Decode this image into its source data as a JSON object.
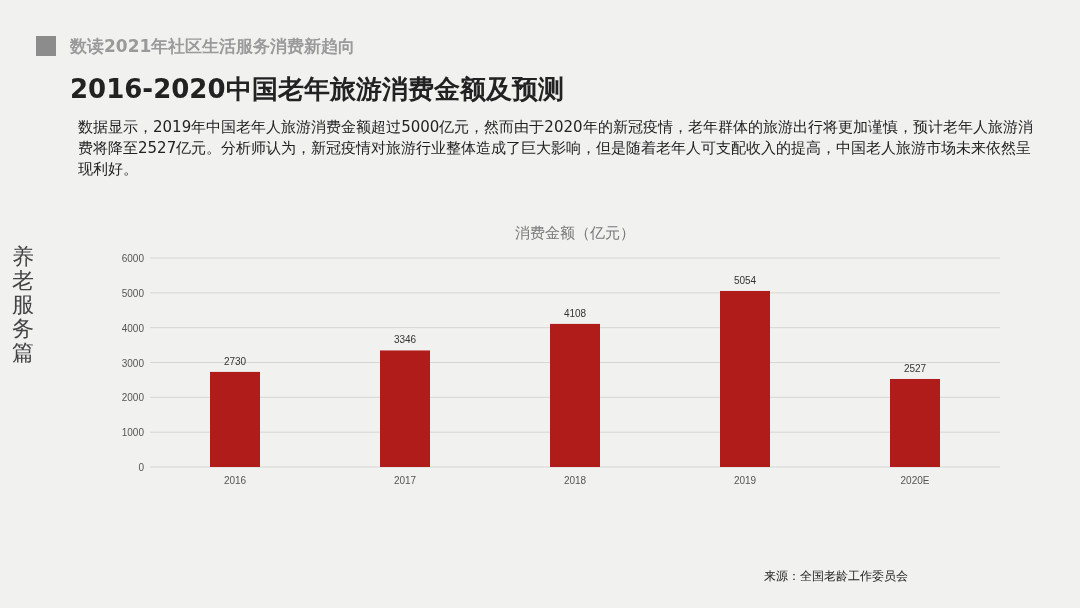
{
  "chart_data": {
    "type": "bar",
    "title": "2016-2020中国老年旅游消费金额及预测",
    "subtitle": "数据显示，2019年中国老年人旅游消费金额超过5000亿元，然而由于2020年的新冠疫情，老年群体的旅游出行将更加谨慎，预计老年人旅游消费将降至2527亿元。分析师认为，新冠疫情对旅游行业整体造成了巨大影响，但是随着老年人可支配收入的提高，中国老人旅游市场未来依然呈现利好。",
    "annotations": [
      "数读2021年社区生活服务消费新趋向",
      "养老服务篇",
      "消费金额（亿元）",
      "来源：全国老龄工作委员会"
    ],
    "categories": [
      "2016",
      "2017",
      "2018",
      "2019",
      "2020E"
    ],
    "values": [
      2730,
      3346,
      4108,
      5054,
      2527
    ],
    "color": "#b01c1a",
    "ylim": [
      0,
      6000
    ],
    "yticks": [
      0,
      1000,
      2000,
      3000,
      4000,
      5000,
      6000
    ],
    "grid": "y",
    "data_labels": true
  }
}
